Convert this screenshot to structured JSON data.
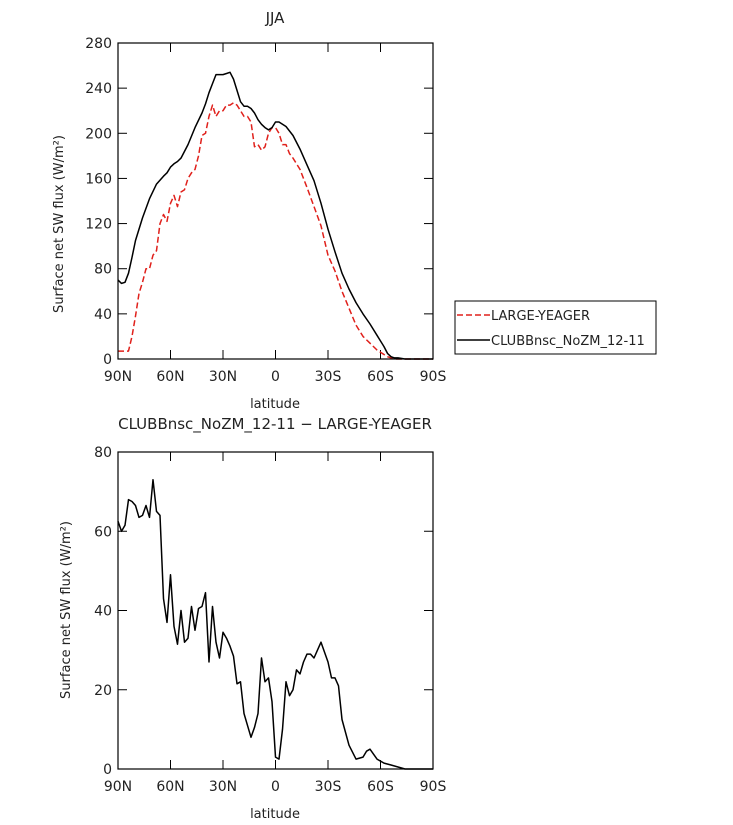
{
  "chart_data": [
    {
      "type": "line",
      "title": "JJA",
      "xlabel": "latitude",
      "ylabel": "Surface net SW flux (W/m²)",
      "xlim": [
        90,
        -90
      ],
      "ylim": [
        0,
        280
      ],
      "x_ticks": [
        90,
        60,
        30,
        0,
        -30,
        -60,
        -90
      ],
      "x_tick_labels": [
        "90N",
        "60N",
        "30N",
        "0",
        "30S",
        "60S",
        "90S"
      ],
      "y_ticks": [
        0,
        40,
        80,
        120,
        160,
        200,
        240,
        280
      ],
      "y_tick_labels": [
        "0",
        "40",
        "80",
        "120",
        "160",
        "200",
        "240",
        "280"
      ],
      "legend_position": "right",
      "series": [
        {
          "name": "LARGE-YEAGER",
          "color": "#e0201b",
          "style": "dashed",
          "x": [
            90,
            87,
            84,
            82,
            80,
            78,
            76,
            74,
            72,
            70,
            68,
            66,
            64,
            62,
            60,
            58,
            56,
            54,
            52,
            50,
            48,
            46,
            44,
            42,
            40,
            38,
            36,
            34,
            32,
            30,
            28,
            26,
            24,
            22,
            20,
            18,
            16,
            14,
            12,
            10,
            8,
            6,
            4,
            2,
            0,
            -2,
            -4,
            -6,
            -8,
            -10,
            -14,
            -18,
            -22,
            -26,
            -30,
            -34,
            -38,
            -42,
            -46,
            -50,
            -54,
            -58,
            -62,
            -64,
            -66,
            -68,
            -70,
            -74,
            -78,
            -82,
            -86,
            -90
          ],
          "y": [
            7,
            7,
            7,
            20,
            38,
            58,
            68,
            80,
            80,
            92,
            96,
            120,
            128,
            122,
            138,
            145,
            135,
            148,
            150,
            160,
            165,
            168,
            180,
            198,
            200,
            215,
            225,
            215,
            220,
            220,
            225,
            225,
            227,
            225,
            220,
            215,
            215,
            210,
            188,
            190,
            185,
            188,
            200,
            205,
            205,
            200,
            190,
            190,
            182,
            178,
            168,
            152,
            135,
            118,
            92,
            78,
            60,
            45,
            30,
            20,
            14,
            8,
            4,
            2,
            1,
            0,
            0,
            0,
            0,
            0,
            0,
            0
          ]
        },
        {
          "name": "CLUBBnsc_NoZM_12-11",
          "color": "#000000",
          "style": "solid",
          "x": [
            90,
            88,
            86,
            84,
            82,
            80,
            76,
            72,
            68,
            64,
            62,
            60,
            58,
            56,
            54,
            50,
            46,
            42,
            40,
            38,
            36,
            34,
            32,
            30,
            28,
            26,
            24,
            22,
            20,
            18,
            16,
            14,
            12,
            10,
            8,
            6,
            4,
            2,
            0,
            -2,
            -4,
            -6,
            -10,
            -14,
            -18,
            -22,
            -26,
            -30,
            -34,
            -38,
            -42,
            -46,
            -50,
            -54,
            -58,
            -62,
            -64,
            -66,
            -68,
            -70,
            -74,
            -78,
            -82,
            -86,
            -90
          ],
          "y": [
            70,
            67,
            68,
            76,
            90,
            105,
            125,
            142,
            155,
            162,
            165,
            170,
            173,
            175,
            178,
            190,
            205,
            218,
            226,
            236,
            244,
            252,
            252,
            252,
            253,
            254,
            248,
            238,
            228,
            224,
            224,
            222,
            218,
            212,
            208,
            205,
            203,
            205,
            210,
            210,
            208,
            206,
            198,
            186,
            172,
            158,
            138,
            115,
            95,
            76,
            62,
            50,
            40,
            31,
            21,
            11,
            5,
            2,
            1,
            1,
            0,
            0,
            0,
            0,
            0
          ]
        }
      ]
    },
    {
      "type": "line",
      "title": "CLUBBnsc_NoZM_12-11 − LARGE-YEAGER",
      "xlabel": "latitude",
      "ylabel": "Surface net SW flux (W/m²)",
      "xlim": [
        90,
        -90
      ],
      "ylim": [
        0,
        80
      ],
      "x_ticks": [
        90,
        60,
        30,
        0,
        -30,
        -60,
        -90
      ],
      "x_tick_labels": [
        "90N",
        "60N",
        "30N",
        "0",
        "30S",
        "60S",
        "90S"
      ],
      "y_ticks": [
        0,
        20,
        40,
        60,
        80
      ],
      "y_tick_labels": [
        "0",
        "20",
        "40",
        "60",
        "80"
      ],
      "series": [
        {
          "color": "#000000",
          "style": "solid",
          "x": [
            90,
            88,
            86,
            84,
            82,
            80,
            78,
            76,
            74,
            72,
            70,
            68,
            66,
            64,
            62,
            60,
            58,
            56,
            54,
            52,
            50,
            48,
            46,
            44,
            42,
            40,
            38,
            36,
            34,
            32,
            30,
            28,
            26,
            24,
            22,
            20,
            18,
            16,
            14,
            12,
            10,
            8,
            6,
            4,
            2,
            0,
            -2,
            -4,
            -6,
            -8,
            -10,
            -12,
            -14,
            -16,
            -18,
            -20,
            -22,
            -24,
            -26,
            -28,
            -30,
            -32,
            -34,
            -36,
            -38,
            -42,
            -46,
            -50,
            -52,
            -54,
            -58,
            -62,
            -66,
            -70,
            -74,
            -78,
            -80,
            -84,
            -88,
            -90
          ],
          "y": [
            62.5,
            60,
            61.5,
            68,
            67.5,
            66.5,
            63.5,
            64,
            66.5,
            63.5,
            73,
            65,
            64,
            43,
            37,
            49,
            36,
            31.5,
            40,
            32,
            33,
            41,
            35,
            40.5,
            41,
            44.5,
            27,
            41,
            32,
            28,
            34.5,
            33,
            31,
            28.5,
            21.5,
            22,
            14,
            11,
            8,
            10.5,
            14,
            28,
            22,
            23,
            17,
            3,
            2.5,
            10,
            22,
            18.5,
            20,
            25,
            24,
            27,
            29,
            29,
            28,
            30,
            32,
            29.5,
            27,
            23,
            23,
            21,
            12.5,
            6,
            2.5,
            3,
            4.5,
            5,
            2.5,
            1.5,
            1,
            0.5,
            0,
            0,
            0,
            0,
            0,
            0
          ]
        }
      ]
    }
  ]
}
